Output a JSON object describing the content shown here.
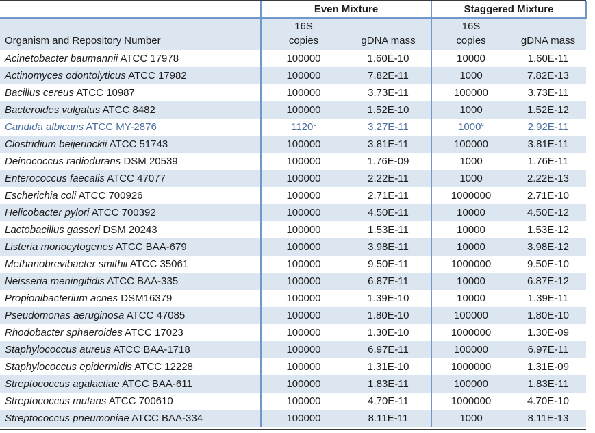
{
  "table": {
    "group_headers": [
      "Even Mixture",
      "Staggered Mixture"
    ],
    "organism_header": "Organism and Repository Number",
    "subheaders": {
      "copies_line1": "16S",
      "copies_line2": "copies",
      "gdna": "gDNA mass"
    },
    "colors": {
      "band": "#dce6f1",
      "border_blue": "#6f98cb",
      "highlight_text": "#4a6e9e",
      "outer_rule": "#3a3a3a"
    },
    "rows": [
      {
        "name": "Acinetobacter baumannii",
        "id": "ATCC 17978",
        "even_copies": "100000",
        "even_copies_sup": "",
        "even_gdna": "1.60E-10",
        "stag_copies": "10000",
        "stag_copies_sup": "",
        "stag_gdna": "1.60E-11",
        "highlight": false
      },
      {
        "name": "Actinomyces odontolyticus",
        "id": "ATCC 17982",
        "even_copies": "100000",
        "even_copies_sup": "",
        "even_gdna": "7.82E-11",
        "stag_copies": "1000",
        "stag_copies_sup": "",
        "stag_gdna": "7.82E-13",
        "highlight": false
      },
      {
        "name": "Bacillus cereus",
        "id": "ATCC 10987",
        "even_copies": "100000",
        "even_copies_sup": "",
        "even_gdna": "3.73E-11",
        "stag_copies": "100000",
        "stag_copies_sup": "",
        "stag_gdna": "3.73E-11",
        "highlight": false
      },
      {
        "name": "Bacteroides vulgatus",
        "id": "ATCC 8482",
        "even_copies": "100000",
        "even_copies_sup": "",
        "even_gdna": "1.52E-10",
        "stag_copies": "1000",
        "stag_copies_sup": "",
        "stag_gdna": "1.52E-12",
        "highlight": false
      },
      {
        "name": "Candida albicans",
        "id": "ATCC MY-2876",
        "even_copies": "1120",
        "even_copies_sup": "c",
        "even_gdna": "3.27E-11",
        "stag_copies": "1000",
        "stag_copies_sup": "c",
        "stag_gdna": "2.92E-11",
        "highlight": true
      },
      {
        "name": "Clostridium beijerinckii",
        "id": "ATCC 51743",
        "even_copies": "100000",
        "even_copies_sup": "",
        "even_gdna": "3.81E-11",
        "stag_copies": "100000",
        "stag_copies_sup": "",
        "stag_gdna": "3.81E-11",
        "highlight": false
      },
      {
        "name": "Deinococcus radiodurans",
        "id": "DSM 20539",
        "even_copies": "100000",
        "even_copies_sup": "",
        "even_gdna": "1.76E-09",
        "stag_copies": "1000",
        "stag_copies_sup": "",
        "stag_gdna": "1.76E-11",
        "highlight": false
      },
      {
        "name": "Enterococcus faecalis",
        "id": "ATCC 47077",
        "even_copies": "100000",
        "even_copies_sup": "",
        "even_gdna": "2.22E-11",
        "stag_copies": "1000",
        "stag_copies_sup": "",
        "stag_gdna": "2.22E-13",
        "highlight": false
      },
      {
        "name": "Escherichia coli",
        "id": "ATCC 700926",
        "even_copies": "100000",
        "even_copies_sup": "",
        "even_gdna": "2.71E-11",
        "stag_copies": "1000000",
        "stag_copies_sup": "",
        "stag_gdna": "2.71E-10",
        "highlight": false
      },
      {
        "name": "Helicobacter pylori",
        "id": "ATCC 700392",
        "even_copies": "100000",
        "even_copies_sup": "",
        "even_gdna": "4.50E-11",
        "stag_copies": "10000",
        "stag_copies_sup": "",
        "stag_gdna": "4.50E-12",
        "highlight": false
      },
      {
        "name": "Lactobacillus gasseri",
        "id": "DSM 20243",
        "even_copies": "100000",
        "even_copies_sup": "",
        "even_gdna": "1.53E-11",
        "stag_copies": "10000",
        "stag_copies_sup": "",
        "stag_gdna": "1.53E-12",
        "highlight": false
      },
      {
        "name": "Listeria monocytogenes",
        "id": "ATCC BAA-679",
        "even_copies": "100000",
        "even_copies_sup": "",
        "even_gdna": "3.98E-11",
        "stag_copies": "10000",
        "stag_copies_sup": "",
        "stag_gdna": "3.98E-12",
        "highlight": false
      },
      {
        "name": "Methanobrevibacter smithii",
        "id": "ATCC 35061",
        "even_copies": "100000",
        "even_copies_sup": "",
        "even_gdna": "9.50E-11",
        "stag_copies": "1000000",
        "stag_copies_sup": "",
        "stag_gdna": "9.50E-10",
        "highlight": false
      },
      {
        "name": "Neisseria meningitidis",
        "id": "ATCC BAA-335",
        "even_copies": "100000",
        "even_copies_sup": "",
        "even_gdna": "6.87E-11",
        "stag_copies": "10000",
        "stag_copies_sup": "",
        "stag_gdna": "6.87E-12",
        "highlight": false
      },
      {
        "name": "Propionibacterium acnes",
        "id": "DSM16379",
        "even_copies": "100000",
        "even_copies_sup": "",
        "even_gdna": "1.39E-10",
        "stag_copies": "10000",
        "stag_copies_sup": "",
        "stag_gdna": "1.39E-11",
        "highlight": false
      },
      {
        "name": "Pseudomonas aeruginosa",
        "id": "ATCC 47085",
        "even_copies": "100000",
        "even_copies_sup": "",
        "even_gdna": "1.80E-10",
        "stag_copies": "100000",
        "stag_copies_sup": "",
        "stag_gdna": "1.80E-10",
        "highlight": false
      },
      {
        "name": "Rhodobacter sphaeroides",
        "id": "ATCC 17023",
        "even_copies": "100000",
        "even_copies_sup": "",
        "even_gdna": "1.30E-10",
        "stag_copies": "1000000",
        "stag_copies_sup": "",
        "stag_gdna": "1.30E-09",
        "highlight": false
      },
      {
        "name": "Staphylococcus aureus",
        "id": "ATCC BAA-1718",
        "even_copies": "100000",
        "even_copies_sup": "",
        "even_gdna": "6.97E-11",
        "stag_copies": "100000",
        "stag_copies_sup": "",
        "stag_gdna": "6.97E-11",
        "highlight": false
      },
      {
        "name": "Staphylococcus epidermidis",
        "id": "ATCC 12228",
        "even_copies": "100000",
        "even_copies_sup": "",
        "even_gdna": "1.31E-10",
        "stag_copies": "1000000",
        "stag_copies_sup": "",
        "stag_gdna": "1.31E-09",
        "highlight": false
      },
      {
        "name": "Streptococcus agalactiae",
        "id": "ATCC BAA-611",
        "even_copies": "100000",
        "even_copies_sup": "",
        "even_gdna": "1.83E-11",
        "stag_copies": "100000",
        "stag_copies_sup": "",
        "stag_gdna": "1.83E-11",
        "highlight": false
      },
      {
        "name": "Streptococcus mutans",
        "id": "ATCC 700610",
        "even_copies": "100000",
        "even_copies_sup": "",
        "even_gdna": "4.70E-11",
        "stag_copies": "1000000",
        "stag_copies_sup": "",
        "stag_gdna": "4.70E-10",
        "highlight": false
      },
      {
        "name": "Streptococcus pneumoniae",
        "id": "ATCC BAA-334",
        "even_copies": "100000",
        "even_copies_sup": "",
        "even_gdna": "8.11E-11",
        "stag_copies": "1000",
        "stag_copies_sup": "",
        "stag_gdna": "8.11E-13",
        "highlight": false
      }
    ]
  }
}
